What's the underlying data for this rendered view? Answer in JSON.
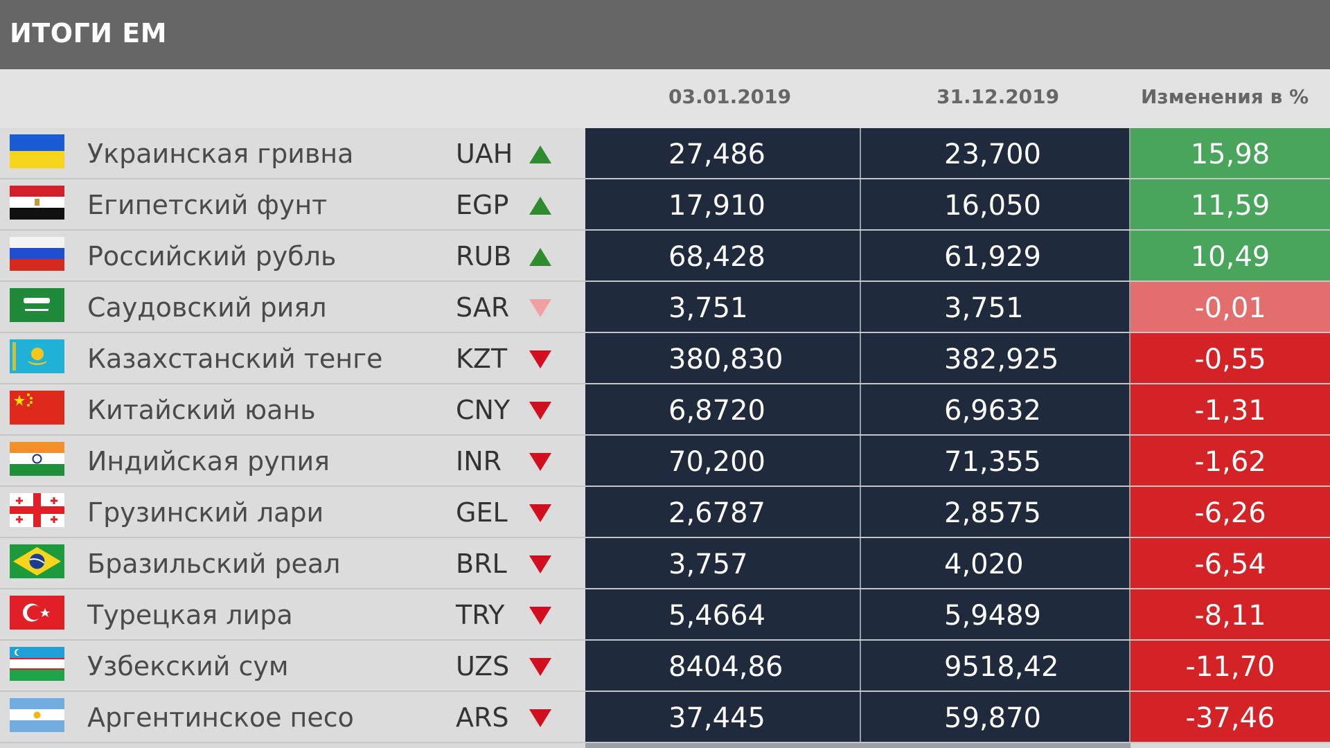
{
  "title": "ИТОГИ ЕМ",
  "columns": {
    "date_start": "03.01.2019",
    "date_end": "31.12.2019",
    "change": "Изменения в %"
  },
  "colors": {
    "positive": "#4aa55c",
    "slight_negative": "#e36e6e",
    "negative": "#d42326",
    "arrow_up": "#2e8b2e",
    "arrow_down": "#d10f1e",
    "arrow_slight_down": "#f0a0a0"
  },
  "rows": [
    {
      "flag": "ukraine-flag",
      "name": "Украинская гривна",
      "code": "UAH",
      "trend": "up",
      "start": "27,486",
      "end": "23,700",
      "change": "15,98",
      "status": "positive"
    },
    {
      "flag": "egypt-flag",
      "name": "Египетский фунт",
      "code": "EGP",
      "trend": "up",
      "start": "17,910",
      "end": "16,050",
      "change": "11,59",
      "status": "positive"
    },
    {
      "flag": "russia-flag",
      "name": "Российский рубль",
      "code": "RUB",
      "trend": "up",
      "start": "68,428",
      "end": "61,929",
      "change": "10,49",
      "status": "positive"
    },
    {
      "flag": "saudi-arabia-flag",
      "name": "Саудовский риял",
      "code": "SAR",
      "trend": "slight-down",
      "start": "3,751",
      "end": "3,751",
      "change": "-0,01",
      "status": "slight_negative"
    },
    {
      "flag": "kazakhstan-flag",
      "name": "Казахстанский тенге",
      "code": "KZT",
      "trend": "down",
      "start": "380,830",
      "end": "382,925",
      "change": "-0,55",
      "status": "negative"
    },
    {
      "flag": "china-flag",
      "name": "Китайский юань",
      "code": "CNY",
      "trend": "down",
      "start": "6,8720",
      "end": "6,9632",
      "change": "-1,31",
      "status": "negative"
    },
    {
      "flag": "india-flag",
      "name": "Индийская рупия",
      "code": "INR",
      "trend": "down",
      "start": "70,200",
      "end": "71,355",
      "change": "-1,62",
      "status": "negative"
    },
    {
      "flag": "georgia-flag",
      "name": "Грузинский лари",
      "code": "GEL",
      "trend": "down",
      "start": "2,6787",
      "end": "2,8575",
      "change": "-6,26",
      "status": "negative"
    },
    {
      "flag": "brazil-flag",
      "name": "Бразильский реал",
      "code": "BRL",
      "trend": "down",
      "start": "3,757",
      "end": "4,020",
      "change": "-6,54",
      "status": "negative"
    },
    {
      "flag": "turkey-flag",
      "name": "Турецкая лира",
      "code": "TRY",
      "trend": "down",
      "start": "5,4664",
      "end": "5,9489",
      "change": "-8,11",
      "status": "negative"
    },
    {
      "flag": "uzbekistan-flag",
      "name": "Узбекский сум",
      "code": "UZS",
      "trend": "down",
      "start": "8404,86",
      "end": "9518,42",
      "change": "-11,70",
      "status": "negative"
    },
    {
      "flag": "argentina-flag",
      "name": "Аргентинское песо",
      "code": "ARS",
      "trend": "down",
      "start": "37,445",
      "end": "59,870",
      "change": "-37,46",
      "status": "negative"
    }
  ]
}
